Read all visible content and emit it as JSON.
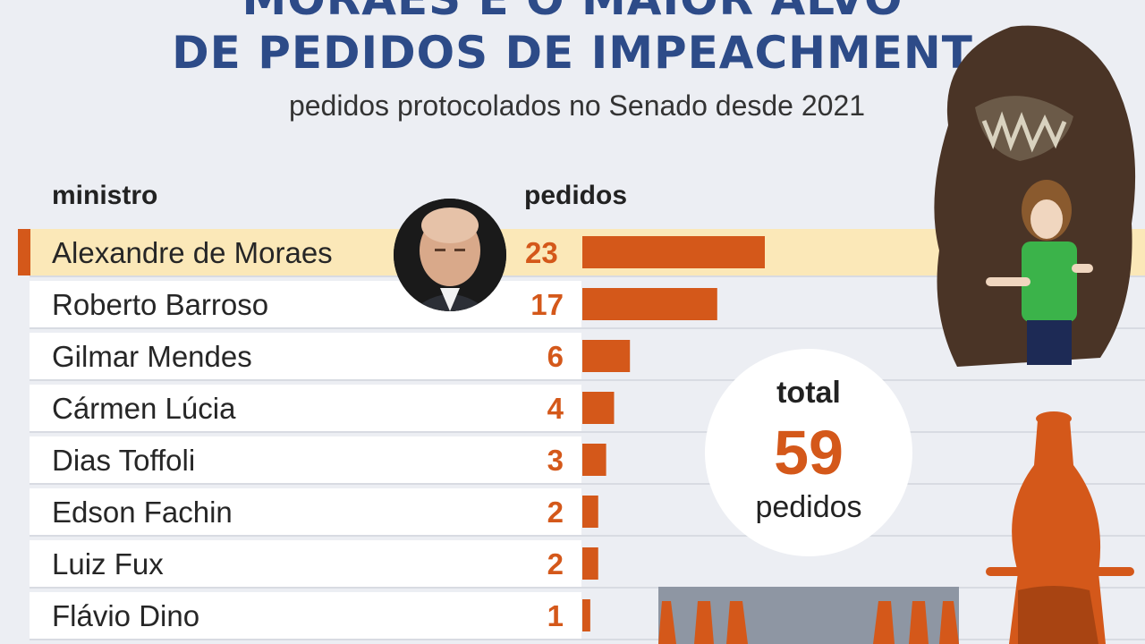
{
  "title_line1": "MORAES É O MAIOR ALVO",
  "title_line2": "DE PEDIDOS DE IMPEACHMENT",
  "subtitle": "pedidos protocolados no Senado desde 2021",
  "headers": {
    "name": "ministro",
    "value": "pedidos"
  },
  "total": {
    "label": "total",
    "value": "59",
    "unit": "pedidos"
  },
  "colors": {
    "bar": "#d4581a",
    "title": "#2d4b88",
    "highlight": "#fbe8b8"
  },
  "chart_data": {
    "type": "bar",
    "orientation": "horizontal",
    "title": "DE PEDIDOS DE IMPEACHMENT",
    "subtitle": "pedidos protocolados no Senado desde 2021",
    "xlabel": "pedidos",
    "ylabel": "ministro",
    "categories": [
      "Alexandre de Moraes",
      "Roberto Barroso",
      "Gilmar Mendes",
      "Cármen Lúcia",
      "Dias Toffoli",
      "Edson Fachin",
      "Luiz Fux",
      "Flávio Dino"
    ],
    "values": [
      23,
      17,
      6,
      4,
      3,
      2,
      2,
      1
    ],
    "highlighted": "Alexandre de Moraes",
    "grid": false
  }
}
